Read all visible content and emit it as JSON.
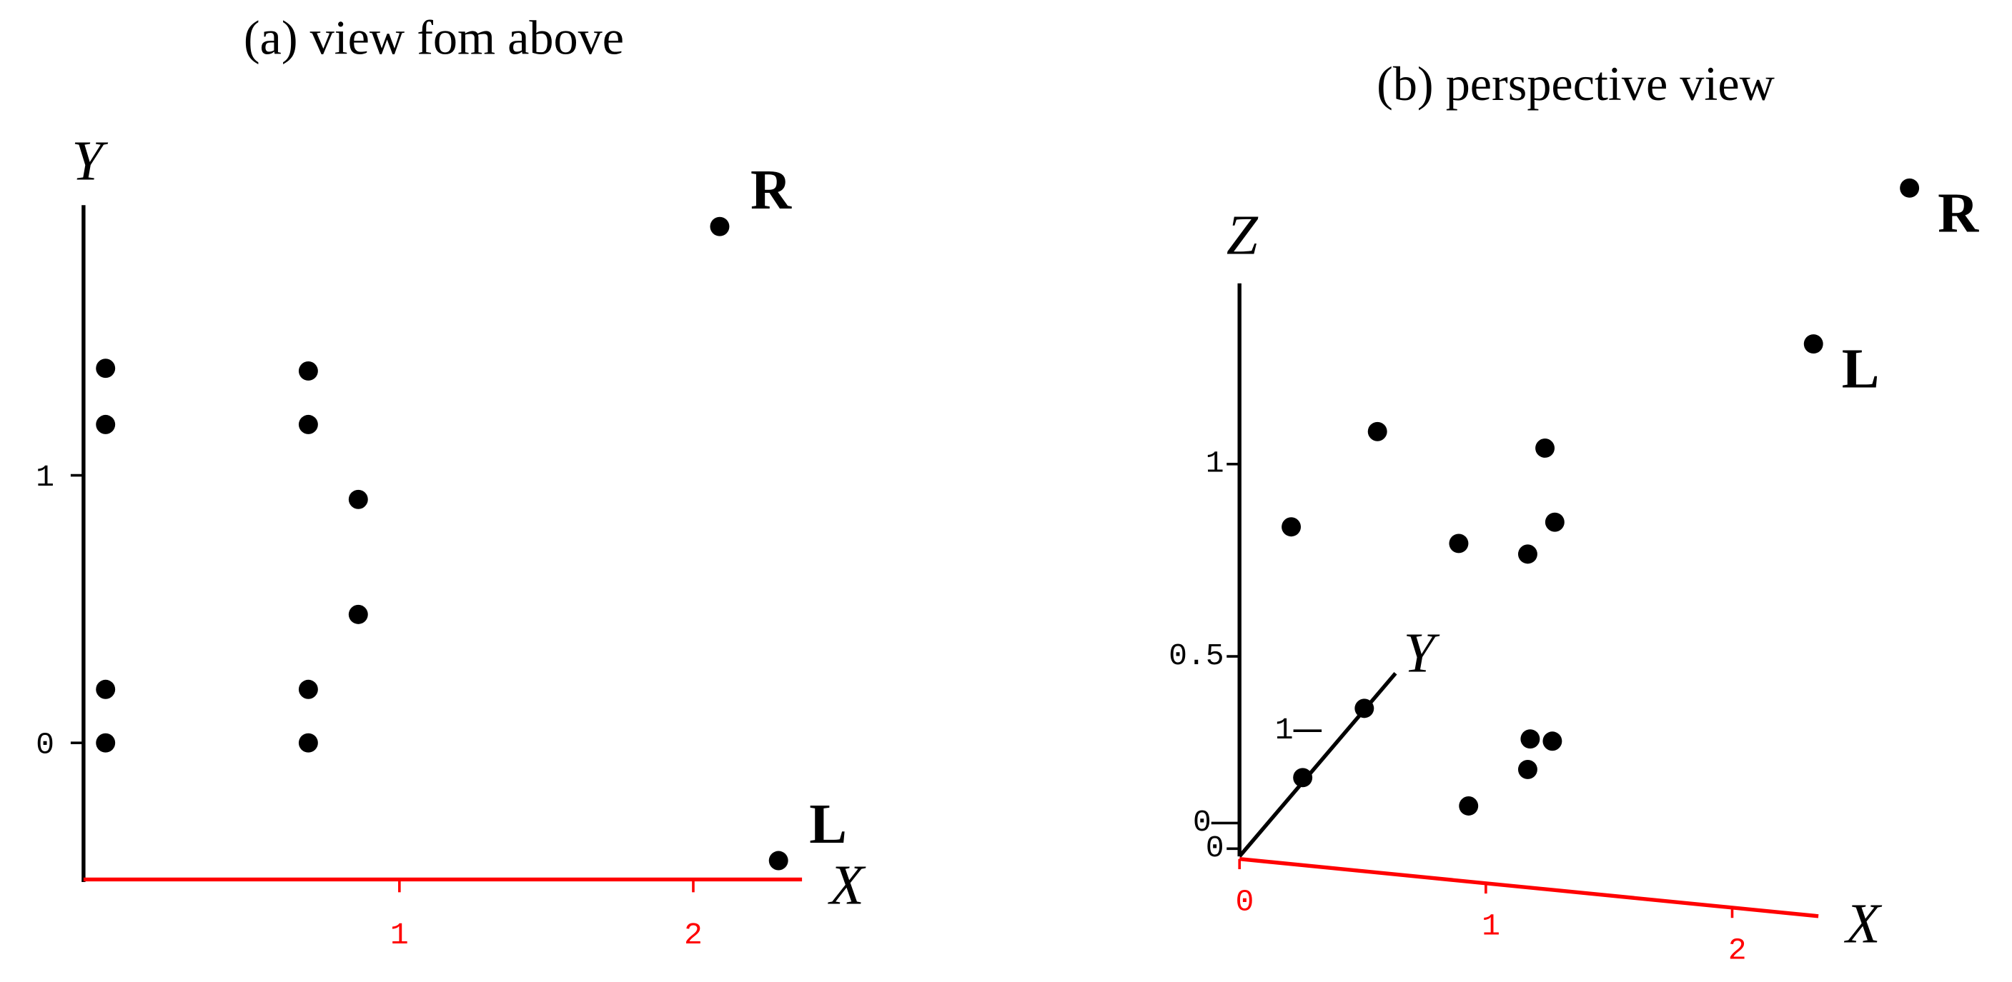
{
  "chart_data": [
    {
      "type": "scatter",
      "title": "(a) view fom above",
      "x_label": "X",
      "y_label": "Y",
      "x": [
        0,
        0,
        0,
        0,
        0.69,
        0.69,
        0.86,
        0.86,
        0.69,
        0.69,
        2.09,
        2.29
      ],
      "y": [
        1.4,
        1.19,
        0.2,
        0,
        1.39,
        1.19,
        0.91,
        0.48,
        0.2,
        0,
        1.93,
        -0.44
      ],
      "labels": [
        null,
        null,
        null,
        null,
        null,
        null,
        null,
        null,
        null,
        null,
        "R",
        "L"
      ],
      "xlim": [
        -0.075,
        2.37
      ],
      "ylim": [
        -0.52,
        2.01
      ],
      "xticks": [
        1,
        2
      ],
      "yticks": [
        0,
        1
      ],
      "color": "#000000",
      "x_axis_color": "#ff0000"
    },
    {
      "type": "scatter3d",
      "title": "(b) perspective view",
      "x_label": "X",
      "y_label": "Y",
      "z_label": "Z",
      "x": [
        0,
        0,
        0.21,
        0.56,
        0.89,
        1.24,
        1.17,
        1.28,
        0.93,
        1.17,
        1.18,
        1.27,
        2.33,
        2.72
      ],
      "y": [
        0.77,
        1.52,
        0,
        0,
        0,
        0,
        0,
        0,
        0,
        0,
        0,
        0,
        0,
        0
      ],
      "z": [
        0,
        0,
        0.85,
        1.12,
        0.85,
        1.12,
        0.84,
        0.93,
        0.17,
        0.28,
        0.36,
        0.36,
        1.46,
        1.89
      ],
      "labels": [
        null,
        null,
        null,
        null,
        null,
        null,
        null,
        null,
        null,
        null,
        null,
        null,
        "L",
        "R"
      ],
      "xlim": [
        0,
        2.35
      ],
      "ylim": [
        0,
        1.9
      ],
      "zlim": [
        0,
        1.47
      ],
      "xticks": [
        0,
        1,
        2
      ],
      "yticks": [
        0,
        1
      ],
      "zticks": [
        0,
        0.5,
        1
      ],
      "color": "#000000",
      "x_axis_color": "#ff0000"
    }
  ]
}
